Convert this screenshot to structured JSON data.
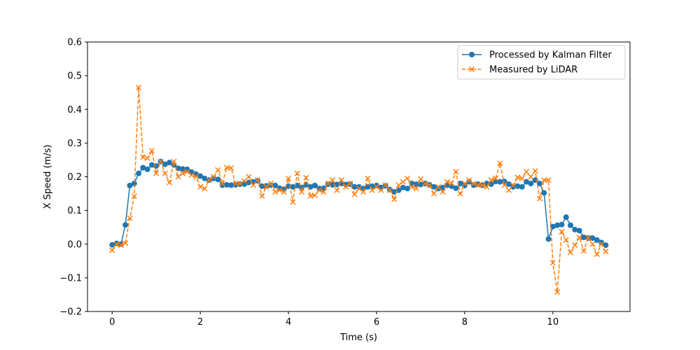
{
  "chart_data": {
    "type": "line",
    "xlabel": "Time (s)",
    "ylabel": "X Speed (m/s)",
    "xlim": [
      -0.56,
      11.75
    ],
    "ylim": [
      -0.2,
      0.6
    ],
    "xticks": [
      0,
      2,
      4,
      6,
      8,
      10
    ],
    "yticks": [
      -0.2,
      -0.1,
      0.0,
      0.1,
      0.2,
      0.3,
      0.4,
      0.5,
      0.6
    ],
    "xtick_labels": [
      "0",
      "2",
      "4",
      "6",
      "8",
      "10"
    ],
    "ytick_labels": [
      "−0.2",
      "−0.1",
      "0.0",
      "0.1",
      "0.2",
      "0.3",
      "0.4",
      "0.5",
      "0.6"
    ],
    "grid": false,
    "legend_position": "top-right",
    "colors": {
      "kalman": "#1f77b4",
      "lidar": "#ff7f0e"
    },
    "series": [
      {
        "name": "Processed by Kalman Filter",
        "style": "solid",
        "marker": "circle",
        "points": [
          [
            0.0,
            -0.002
          ],
          [
            0.1,
            0.002
          ],
          [
            0.2,
            0.0
          ],
          [
            0.3,
            0.057
          ],
          [
            0.4,
            0.174
          ],
          [
            0.5,
            0.18
          ],
          [
            0.6,
            0.21
          ],
          [
            0.7,
            0.227
          ],
          [
            0.8,
            0.222
          ],
          [
            0.9,
            0.235
          ],
          [
            1.0,
            0.232
          ],
          [
            1.1,
            0.245
          ],
          [
            1.2,
            0.237
          ],
          [
            1.3,
            0.242
          ],
          [
            1.4,
            0.235
          ],
          [
            1.5,
            0.225
          ],
          [
            1.6,
            0.223
          ],
          [
            1.7,
            0.222
          ],
          [
            1.8,
            0.214
          ],
          [
            1.9,
            0.208
          ],
          [
            2.0,
            0.202
          ],
          [
            2.1,
            0.195
          ],
          [
            2.2,
            0.19
          ],
          [
            2.3,
            0.195
          ],
          [
            2.4,
            0.192
          ],
          [
            2.5,
            0.175
          ],
          [
            2.6,
            0.176
          ],
          [
            2.7,
            0.175
          ],
          [
            2.8,
            0.176
          ],
          [
            2.9,
            0.178
          ],
          [
            3.0,
            0.178
          ],
          [
            3.1,
            0.183
          ],
          [
            3.2,
            0.185
          ],
          [
            3.3,
            0.188
          ],
          [
            3.4,
            0.172
          ],
          [
            3.5,
            0.173
          ],
          [
            3.6,
            0.175
          ],
          [
            3.7,
            0.174
          ],
          [
            3.8,
            0.166
          ],
          [
            3.9,
            0.163
          ],
          [
            4.0,
            0.172
          ],
          [
            4.1,
            0.17
          ],
          [
            4.2,
            0.174
          ],
          [
            4.3,
            0.168
          ],
          [
            4.4,
            0.176
          ],
          [
            4.5,
            0.17
          ],
          [
            4.6,
            0.174
          ],
          [
            4.7,
            0.165
          ],
          [
            4.8,
            0.166
          ],
          [
            4.9,
            0.178
          ],
          [
            5.0,
            0.176
          ],
          [
            5.1,
            0.177
          ],
          [
            5.2,
            0.18
          ],
          [
            5.3,
            0.177
          ],
          [
            5.4,
            0.178
          ],
          [
            5.5,
            0.17
          ],
          [
            5.6,
            0.17
          ],
          [
            5.7,
            0.165
          ],
          [
            5.8,
            0.17
          ],
          [
            5.9,
            0.172
          ],
          [
            6.0,
            0.174
          ],
          [
            6.1,
            0.168
          ],
          [
            6.2,
            0.173
          ],
          [
            6.3,
            0.162
          ],
          [
            6.4,
            0.155
          ],
          [
            6.5,
            0.16
          ],
          [
            6.6,
            0.168
          ],
          [
            6.7,
            0.165
          ],
          [
            6.8,
            0.18
          ],
          [
            6.9,
            0.178
          ],
          [
            7.0,
            0.177
          ],
          [
            7.1,
            0.18
          ],
          [
            7.2,
            0.176
          ],
          [
            7.3,
            0.17
          ],
          [
            7.4,
            0.165
          ],
          [
            7.5,
            0.168
          ],
          [
            7.6,
            0.175
          ],
          [
            7.7,
            0.172
          ],
          [
            7.8,
            0.166
          ],
          [
            7.9,
            0.18
          ],
          [
            8.0,
            0.174
          ],
          [
            8.1,
            0.185
          ],
          [
            8.2,
            0.175
          ],
          [
            8.3,
            0.178
          ],
          [
            8.4,
            0.175
          ],
          [
            8.5,
            0.18
          ],
          [
            8.6,
            0.178
          ],
          [
            8.7,
            0.186
          ],
          [
            8.8,
            0.185
          ],
          [
            8.9,
            0.186
          ],
          [
            9.0,
            0.178
          ],
          [
            9.1,
            0.17
          ],
          [
            9.2,
            0.172
          ],
          [
            9.3,
            0.17
          ],
          [
            9.4,
            0.185
          ],
          [
            9.5,
            0.18
          ],
          [
            9.6,
            0.19
          ],
          [
            9.7,
            0.18
          ],
          [
            9.8,
            0.152
          ],
          [
            9.9,
            0.015
          ],
          [
            10.0,
            0.052
          ],
          [
            10.1,
            0.056
          ],
          [
            10.2,
            0.058
          ],
          [
            10.3,
            0.08
          ],
          [
            10.4,
            0.056
          ],
          [
            10.5,
            0.043
          ],
          [
            10.6,
            0.04
          ],
          [
            10.7,
            0.02
          ],
          [
            10.8,
            0.018
          ],
          [
            10.9,
            0.018
          ],
          [
            11.0,
            0.012
          ],
          [
            11.1,
            0.005
          ],
          [
            11.2,
            -0.003
          ]
        ]
      },
      {
        "name": "Measured by LiDAR",
        "style": "dashed",
        "marker": "x",
        "points": [
          [
            0.0,
            -0.018
          ],
          [
            0.1,
            0.0
          ],
          [
            0.2,
            -0.003
          ],
          [
            0.3,
            0.003
          ],
          [
            0.4,
            0.077
          ],
          [
            0.5,
            0.142
          ],
          [
            0.6,
            0.465
          ],
          [
            0.7,
            0.258
          ],
          [
            0.8,
            0.255
          ],
          [
            0.9,
            0.277
          ],
          [
            1.0,
            0.21
          ],
          [
            1.1,
            0.245
          ],
          [
            1.2,
            0.21
          ],
          [
            1.3,
            0.183
          ],
          [
            1.4,
            0.245
          ],
          [
            1.5,
            0.2
          ],
          [
            1.6,
            0.21
          ],
          [
            1.7,
            0.215
          ],
          [
            1.8,
            0.205
          ],
          [
            1.9,
            0.2
          ],
          [
            2.0,
            0.17
          ],
          [
            2.1,
            0.165
          ],
          [
            2.2,
            0.19
          ],
          [
            2.3,
            0.2
          ],
          [
            2.4,
            0.22
          ],
          [
            2.5,
            0.18
          ],
          [
            2.6,
            0.227
          ],
          [
            2.7,
            0.226
          ],
          [
            2.8,
            0.18
          ],
          [
            2.9,
            0.18
          ],
          [
            3.0,
            0.188
          ],
          [
            3.1,
            0.2
          ],
          [
            3.2,
            0.175
          ],
          [
            3.3,
            0.19
          ],
          [
            3.4,
            0.143
          ],
          [
            3.5,
            0.17
          ],
          [
            3.6,
            0.18
          ],
          [
            3.7,
            0.155
          ],
          [
            3.8,
            0.16
          ],
          [
            3.9,
            0.155
          ],
          [
            4.0,
            0.195
          ],
          [
            4.1,
            0.125
          ],
          [
            4.2,
            0.21
          ],
          [
            4.3,
            0.155
          ],
          [
            4.4,
            0.197
          ],
          [
            4.5,
            0.143
          ],
          [
            4.6,
            0.145
          ],
          [
            4.7,
            0.16
          ],
          [
            4.8,
            0.155
          ],
          [
            4.9,
            0.18
          ],
          [
            5.0,
            0.19
          ],
          [
            5.1,
            0.16
          ],
          [
            5.2,
            0.19
          ],
          [
            5.3,
            0.17
          ],
          [
            5.4,
            0.18
          ],
          [
            5.5,
            0.148
          ],
          [
            5.6,
            0.165
          ],
          [
            5.7,
            0.155
          ],
          [
            5.8,
            0.195
          ],
          [
            5.9,
            0.16
          ],
          [
            6.0,
            0.17
          ],
          [
            6.1,
            0.16
          ],
          [
            6.2,
            0.175
          ],
          [
            6.3,
            0.16
          ],
          [
            6.4,
            0.133
          ],
          [
            6.5,
            0.175
          ],
          [
            6.6,
            0.185
          ],
          [
            6.7,
            0.195
          ],
          [
            6.8,
            0.17
          ],
          [
            6.9,
            0.165
          ],
          [
            7.0,
            0.193
          ],
          [
            7.1,
            0.18
          ],
          [
            7.2,
            0.175
          ],
          [
            7.3,
            0.15
          ],
          [
            7.4,
            0.17
          ],
          [
            7.5,
            0.155
          ],
          [
            7.6,
            0.185
          ],
          [
            7.7,
            0.18
          ],
          [
            7.8,
            0.215
          ],
          [
            7.9,
            0.15
          ],
          [
            8.0,
            0.18
          ],
          [
            8.1,
            0.19
          ],
          [
            8.2,
            0.18
          ],
          [
            8.3,
            0.175
          ],
          [
            8.4,
            0.175
          ],
          [
            8.5,
            0.17
          ],
          [
            8.6,
            0.19
          ],
          [
            8.7,
            0.195
          ],
          [
            8.8,
            0.24
          ],
          [
            8.9,
            0.175
          ],
          [
            9.0,
            0.16
          ],
          [
            9.1,
            0.175
          ],
          [
            9.2,
            0.198
          ],
          [
            9.3,
            0.195
          ],
          [
            9.4,
            0.215
          ],
          [
            9.5,
            0.2
          ],
          [
            9.6,
            0.217
          ],
          [
            9.7,
            0.135
          ],
          [
            9.8,
            0.19
          ],
          [
            9.9,
            0.19
          ],
          [
            10.0,
            -0.055
          ],
          [
            10.1,
            -0.142
          ],
          [
            10.2,
            0.037
          ],
          [
            10.3,
            0.012
          ],
          [
            10.4,
            -0.025
          ],
          [
            10.5,
            -0.003
          ],
          [
            10.6,
            0.02
          ],
          [
            10.7,
            -0.02
          ],
          [
            10.8,
            0.02
          ],
          [
            10.9,
            0.0
          ],
          [
            11.0,
            -0.03
          ],
          [
            11.1,
            0.0
          ],
          [
            11.2,
            -0.022
          ]
        ]
      }
    ]
  }
}
